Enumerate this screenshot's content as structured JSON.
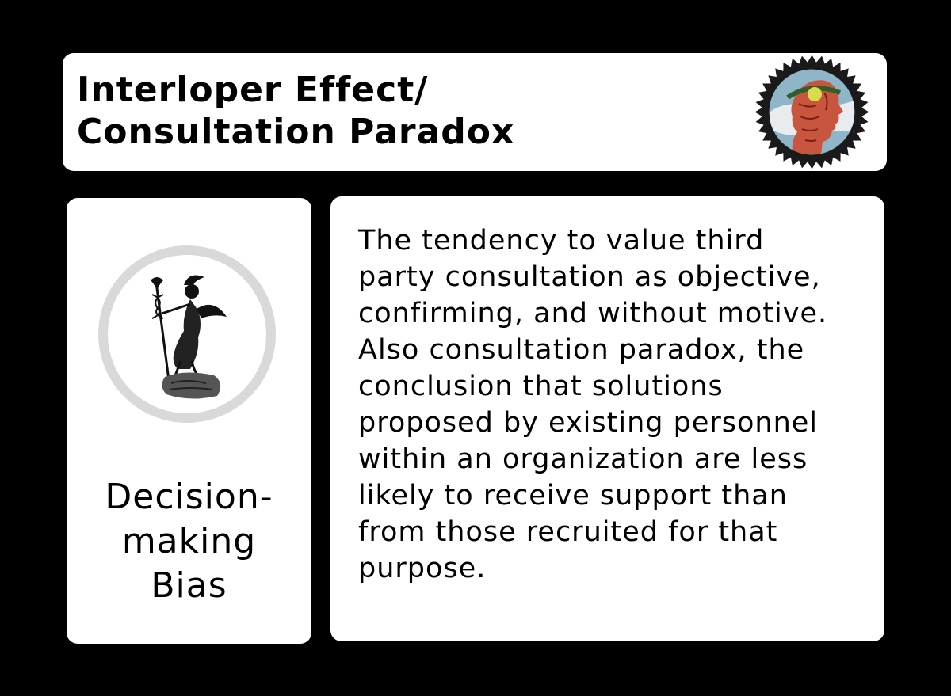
{
  "card": {
    "title_lines": [
      "Interloper Effect/",
      "Consultation Paradox"
    ],
    "category_lines": [
      "Decision-",
      "making",
      "Bias"
    ],
    "definition_lines": [
      "The tendency to value third",
      "party consultation as objective,",
      "confirming, and without motive.",
      "Also consultation paradox, the",
      "conclusion that solutions",
      "proposed by existing personnel",
      "within an organization are less",
      "likely to receive support than",
      "from those recruited for that",
      "purpose."
    ]
  },
  "colors": {
    "background": "#000000",
    "card": "#ffffff",
    "text": "#000000",
    "ring": "#d9d9d9",
    "seal_dark": "#1a1a1a",
    "seal_face": "#c8553d",
    "seal_sky": "#8fb5c9",
    "seal_sun": "#d9dc4a"
  },
  "icons": {
    "seal": "laurel-head-seal-icon",
    "emblem": "hermes-emblem-icon"
  }
}
